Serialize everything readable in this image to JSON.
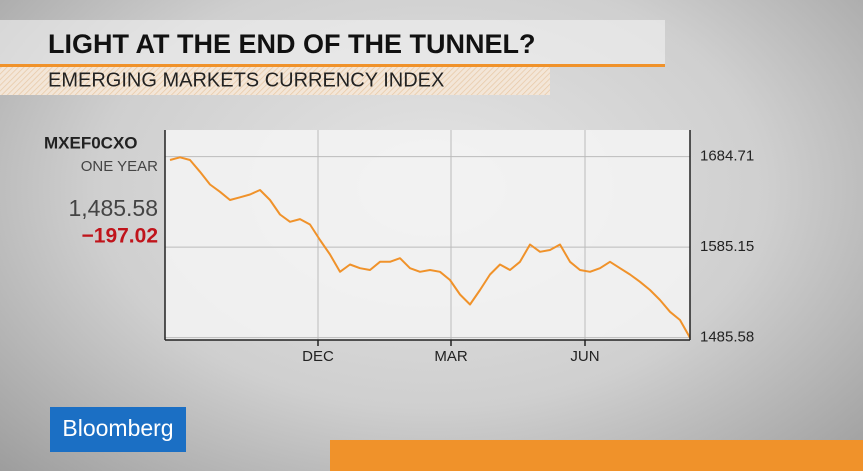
{
  "chart_data": {
    "type": "line",
    "title": "LIGHT AT THE END OF THE TUNNEL?",
    "subtitle": "EMERGING MARKETS CURRENCY INDEX",
    "ticker": "MXEF0CXO",
    "period": "ONE YEAR",
    "last_value": "1,485.58",
    "change": "−197.02",
    "brand": "Bloomberg",
    "x": [
      0,
      1,
      2,
      3,
      4,
      5,
      6,
      7,
      8,
      9,
      10,
      11,
      12,
      13,
      14,
      15,
      16,
      17,
      18,
      19,
      20,
      21,
      22,
      23,
      24,
      25,
      26,
      27,
      28,
      29,
      30,
      31,
      32,
      33,
      34,
      35,
      36,
      37,
      38,
      39,
      40,
      41,
      42,
      43,
      44,
      45,
      46,
      47,
      48,
      49,
      50,
      51,
      52
    ],
    "series": [
      {
        "name": "MXEF0CXO",
        "color": "#f0922a",
        "values": [
          1681,
          1684,
          1681,
          1668,
          1654,
          1646,
          1637,
          1640,
          1643,
          1648,
          1637,
          1621,
          1613,
          1616,
          1610,
          1593,
          1577,
          1558,
          1566,
          1562,
          1560,
          1569,
          1569,
          1573,
          1562,
          1558,
          1560,
          1558,
          1549,
          1533,
          1522,
          1538,
          1555,
          1566,
          1560,
          1569,
          1588,
          1580,
          1582,
          1588,
          1569,
          1560,
          1558,
          1562,
          1569,
          1562,
          1555,
          1547,
          1538,
          1527,
          1514,
          1505,
          1485.58
        ]
      }
    ],
    "xlim": [
      0,
      52
    ],
    "xticks": [
      {
        "value": 14.8,
        "label": "DEC"
      },
      {
        "value": 28.1,
        "label": "MAR"
      },
      {
        "value": 41.5,
        "label": "JUN"
      }
    ],
    "ylim": [
      1483,
      1714
    ],
    "yticks": [
      1485.58,
      1585.15,
      1684.71
    ],
    "grid": true
  }
}
